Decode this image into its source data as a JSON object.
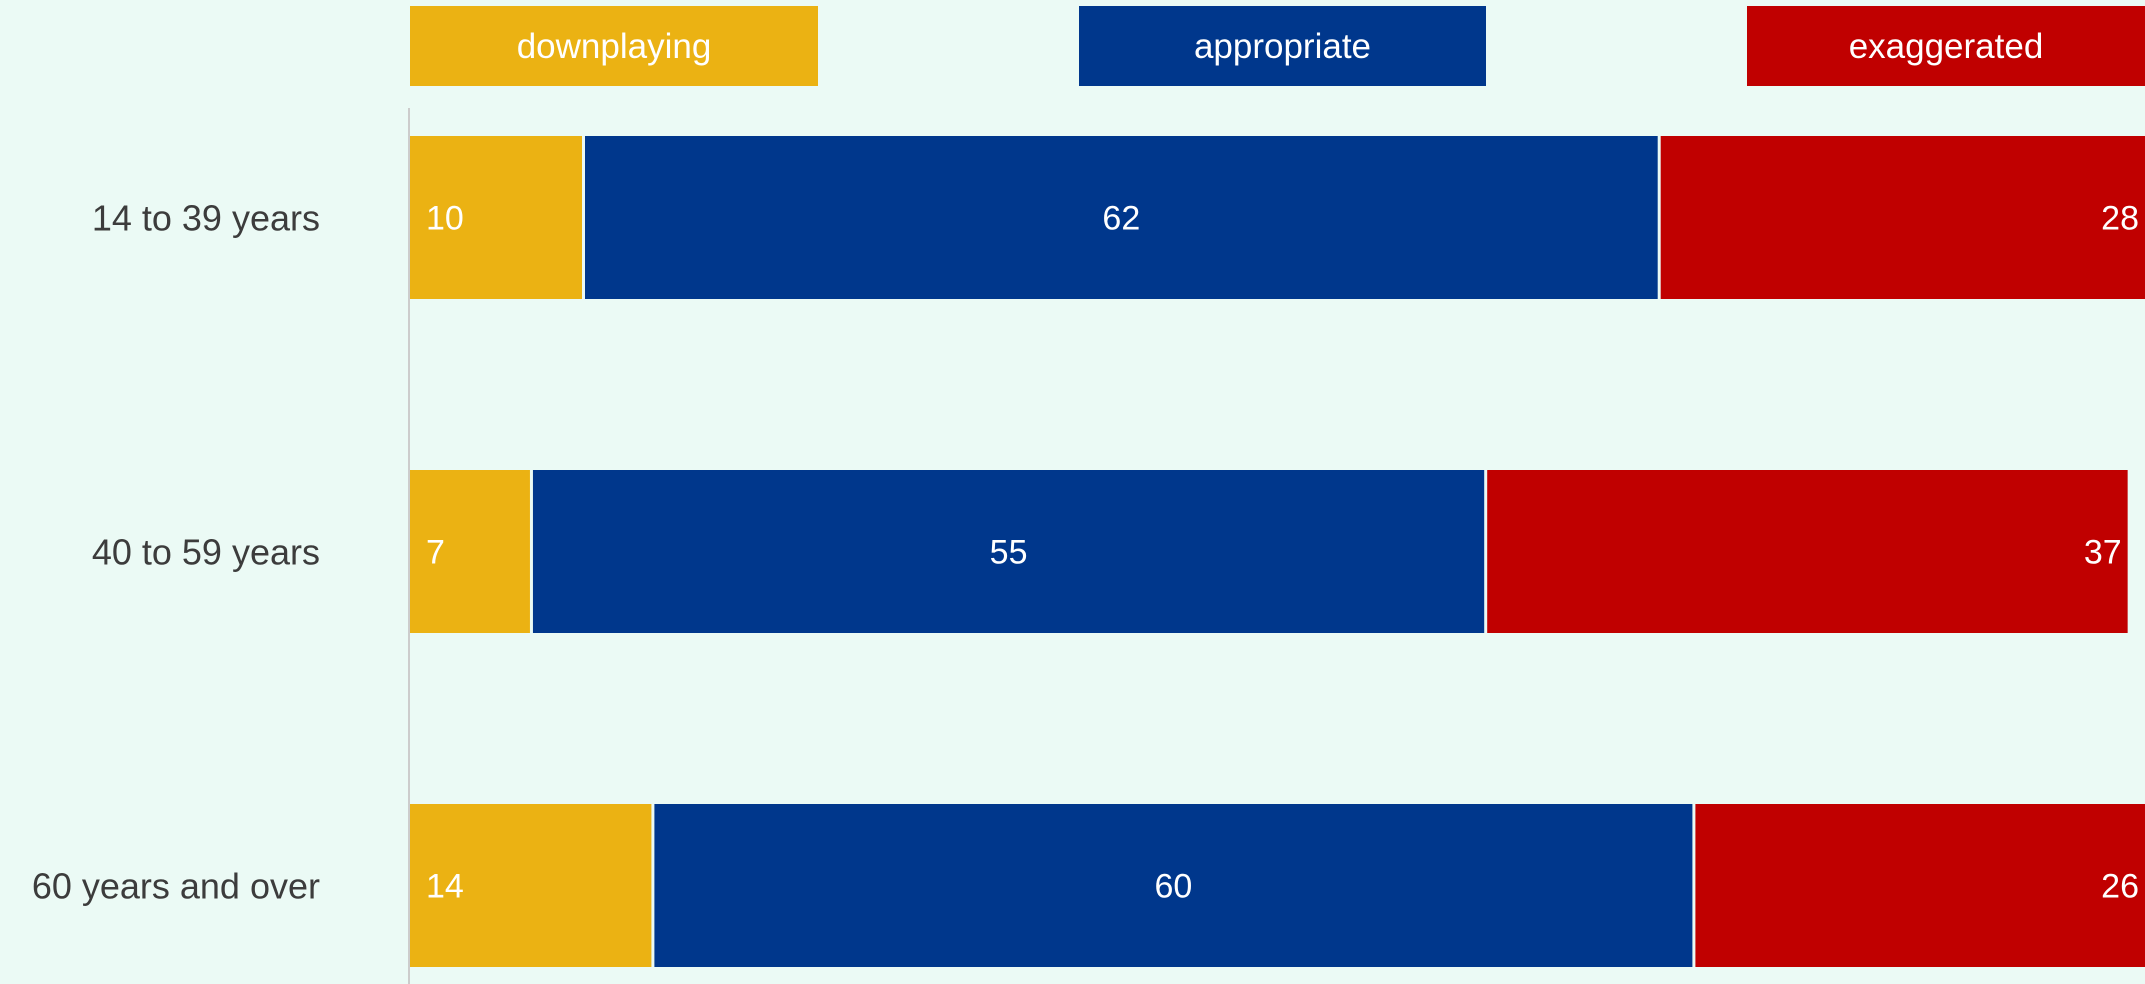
{
  "chart_data": {
    "type": "bar",
    "orientation": "horizontal",
    "stacked": true,
    "categories": [
      "14 to 39 years",
      "40 to 59 years",
      "60 years and over"
    ],
    "series": [
      {
        "name": "downplaying",
        "color": "#ebb213",
        "values": [
          10,
          7,
          14
        ]
      },
      {
        "name": "appropriate",
        "color": "#00378c",
        "values": [
          62,
          55,
          60
        ]
      },
      {
        "name": "exaggerated",
        "color": "#c00000",
        "values": [
          28,
          37,
          26
        ]
      }
    ],
    "xlim": [
      0,
      100
    ],
    "legend_position": "top",
    "grid": false,
    "title": "",
    "xlabel": "",
    "ylabel": ""
  }
}
